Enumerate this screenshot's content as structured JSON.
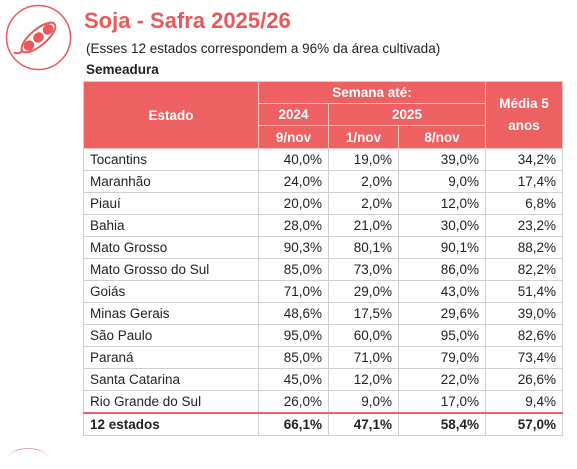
{
  "header": {
    "title": "Soja - Safra 2025/26",
    "subtitle": "(Esses 12 estados correspondem a 96% da área cultivada)",
    "section": "Semeadura",
    "logo_icon": "soybean-pod-icon",
    "accent_color": "#ee6163"
  },
  "table": {
    "col_estado": "Estado",
    "col_semana": "Semana até:",
    "col_2024": "2024",
    "col_2025": "2025",
    "col_media": "Média 5 anos",
    "sub_9nov": "9/nov",
    "sub_1nov": "1/nov",
    "sub_8nov": "8/nov",
    "rows": [
      {
        "estado": "Tocantins",
        "a": "40,0%",
        "b": "19,0%",
        "c": "39,0%",
        "m": "34,2%"
      },
      {
        "estado": "Maranhão",
        "a": "24,0%",
        "b": "2,0%",
        "c": "9,0%",
        "m": "17,4%"
      },
      {
        "estado": "Piauí",
        "a": "20,0%",
        "b": "2,0%",
        "c": "12,0%",
        "m": "6,8%"
      },
      {
        "estado": "Bahia",
        "a": "28,0%",
        "b": "21,0%",
        "c": "30,0%",
        "m": "23,2%"
      },
      {
        "estado": "Mato Grosso",
        "a": "90,3%",
        "b": "80,1%",
        "c": "90,1%",
        "m": "88,2%"
      },
      {
        "estado": "Mato Grosso do Sul",
        "a": "85,0%",
        "b": "73,0%",
        "c": "86,0%",
        "m": "82,2%"
      },
      {
        "estado": "Goiás",
        "a": "71,0%",
        "b": "29,0%",
        "c": "43,0%",
        "m": "51,4%"
      },
      {
        "estado": "Minas Gerais",
        "a": "48,6%",
        "b": "17,5%",
        "c": "29,6%",
        "m": "39,0%"
      },
      {
        "estado": "São Paulo",
        "a": "95,0%",
        "b": "60,0%",
        "c": "95,0%",
        "m": "82,6%"
      },
      {
        "estado": "Paraná",
        "a": "85,0%",
        "b": "71,0%",
        "c": "79,0%",
        "m": "73,4%"
      },
      {
        "estado": "Santa Catarina",
        "a": "45,0%",
        "b": "12,0%",
        "c": "22,0%",
        "m": "26,6%"
      },
      {
        "estado": "Rio Grande do Sul",
        "a": "26,0%",
        "b": "9,0%",
        "c": "17,0%",
        "m": "9,4%"
      }
    ],
    "total": {
      "estado": "12 estados",
      "a": "66,1%",
      "b": "47,1%",
      "c": "58,4%",
      "m": "57,0%"
    }
  }
}
